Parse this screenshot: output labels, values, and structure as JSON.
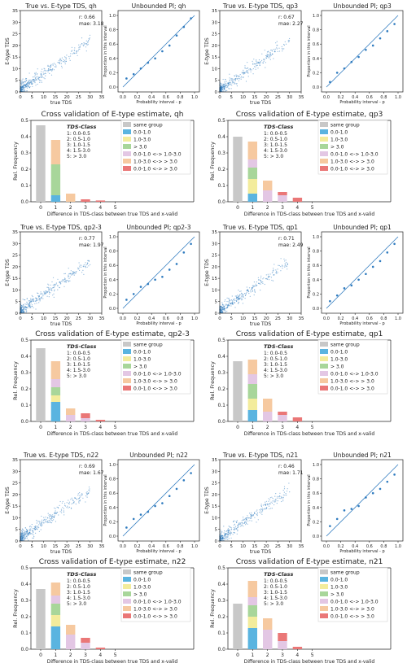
{
  "scatter_common": {
    "title_prefix": "True vs. E-type TDS, ",
    "xlabel": "true TDS",
    "ylabel": "E-type TDS",
    "ticks": [
      0,
      5,
      10,
      15,
      20,
      25,
      30,
      35
    ],
    "r_prefix": "r: ",
    "mae_prefix": "mae: "
  },
  "pi_common": {
    "title_prefix": "Unbounded PI; ",
    "xlabel": "Probability interval - p",
    "ylabel": "Proportion in this interval",
    "ticks": [
      "0.0",
      "0.2",
      "0.4",
      "0.6",
      "0.8",
      "1.0"
    ]
  },
  "bar_common": {
    "title_prefix": "Cross validation of E-type estimate, ",
    "xlabel": "Difference in TDS-class between true TDS and x-valid",
    "ylabel": "Rel. Frequency",
    "yticks": [
      "0.0",
      "0.1",
      "0.2",
      "0.3",
      "0.4",
      "0.5"
    ],
    "xticks": [
      "0",
      "1",
      "2",
      "3",
      "4",
      "5"
    ],
    "class_title": "TDS-Class",
    "classes": [
      "1: 0.0-0.5",
      "2: 0.5-1.0",
      "3: 1.0-1.5",
      "4: 1.5-3.0",
      "5: > 3.0"
    ],
    "legend": [
      {
        "label": "same group",
        "color": "#c8c8c8"
      },
      {
        "label": "0.0-1.0",
        "color": "#5ab4e0"
      },
      {
        "label": "1.0-3.0",
        "color": "#f3ec9c"
      },
      {
        "label": "> 3.0",
        "color": "#a8d69a"
      },
      {
        "label": "0.0-1.0 <-> 1.0-3.0",
        "color": "#e3c7e4"
      },
      {
        "label": "1.0-3.0 <-> > 3.0",
        "color": "#f6c9a0"
      },
      {
        "label": "0.0-1.0 <-> > 3.0",
        "color": "#ea7777"
      }
    ]
  },
  "chart_data": [
    {
      "type": "scatter",
      "title": "True vs. E-type TDS, qh",
      "group": "qh",
      "r": "0.66",
      "mae": "3.18",
      "xlim": [
        0,
        35
      ],
      "ylim": [
        0,
        35
      ]
    },
    {
      "type": "line",
      "title": "Unbounded PI; qh",
      "group": "qh",
      "x": [
        0.05,
        0.15,
        0.25,
        0.35,
        0.45,
        0.55,
        0.65,
        0.75,
        0.85,
        0.95
      ],
      "y": [
        0.12,
        0.18,
        0.26,
        0.34,
        0.4,
        0.5,
        0.58,
        0.72,
        0.84,
        0.96
      ],
      "line": [
        [
          0,
          0
        ],
        [
          1,
          1
        ]
      ]
    },
    {
      "type": "scatter",
      "title": "True vs. E-type TDS, qp3",
      "group": "qp3",
      "r": "0.67",
      "mae": "2.27",
      "xlim": [
        0,
        35
      ],
      "ylim": [
        0,
        35
      ]
    },
    {
      "type": "line",
      "title": "Unbounded PI; qp3",
      "group": "qp3",
      "x": [
        0.05,
        0.15,
        0.25,
        0.35,
        0.45,
        0.55,
        0.65,
        0.75,
        0.85,
        0.95
      ],
      "y": [
        0.07,
        0.2,
        0.26,
        0.35,
        0.42,
        0.52,
        0.58,
        0.68,
        0.78,
        0.88
      ],
      "line": [
        [
          0,
          0
        ],
        [
          1,
          1
        ]
      ]
    },
    {
      "type": "bar",
      "title": "Cross validation of E-type estimate, qh",
      "group": "qh",
      "ylim": [
        0,
        0.5
      ],
      "categories": [
        "0",
        "1",
        "2",
        "3",
        "4",
        "5"
      ],
      "stacks": [
        [
          [
            "same group",
            0.47
          ]
        ],
        [
          [
            "0.0-1.0",
            0.04
          ],
          [
            "> 3.0",
            0.19
          ],
          [
            "1.0-3.0 <-> > 3.0",
            0.15
          ]
        ],
        [
          [
            "1.0-3.0 <-> > 3.0",
            0.05
          ]
        ],
        [
          [
            "0.0-1.0 <-> > 3.0",
            0.015
          ]
        ],
        [
          [
            "0.0-1.0 <-> > 3.0",
            0.008
          ]
        ],
        []
      ]
    },
    {
      "type": "bar",
      "title": "Cross validation of E-type estimate, qp3",
      "group": "qp3",
      "ylim": [
        0,
        0.5
      ],
      "categories": [
        "0",
        "1",
        "2",
        "3",
        "4",
        "5"
      ],
      "stacks": [
        [
          [
            "same group",
            0.4
          ]
        ],
        [
          [
            "0.0-1.0",
            0.05
          ],
          [
            "1.0-3.0",
            0.09
          ],
          [
            "> 3.0",
            0.07
          ],
          [
            "0.0-1.0 <-> 1.0-3.0",
            0.05
          ],
          [
            "1.0-3.0 <-> > 3.0",
            0.11
          ]
        ],
        [
          [
            "0.0-1.0 <-> 1.0-3.0",
            0.07
          ],
          [
            "1.0-3.0 <-> > 3.0",
            0.06
          ]
        ],
        [
          [
            "0.0-1.0 <-> 1.0-3.0",
            0.04
          ],
          [
            "0.0-1.0 <-> > 3.0",
            0.02
          ]
        ],
        [
          [
            "0.0-1.0 <-> > 3.0",
            0.025
          ]
        ],
        []
      ]
    },
    {
      "type": "scatter",
      "title": "True vs. E-type TDS, qp2-3",
      "group": "qp2-3",
      "r": "0.77",
      "mae": "1.97",
      "xlim": [
        0,
        35
      ],
      "ylim": [
        0,
        35
      ]
    },
    {
      "type": "line",
      "title": "Unbounded PI; qp2-3",
      "group": "qp2-3",
      "x": [
        0.05,
        0.15,
        0.25,
        0.35,
        0.45,
        0.55,
        0.65,
        0.75,
        0.85,
        0.95
      ],
      "y": [
        0.12,
        0.2,
        0.3,
        0.34,
        0.4,
        0.44,
        0.54,
        0.62,
        0.78,
        0.9
      ],
      "line": [
        [
          0,
          0
        ],
        [
          1,
          1
        ]
      ]
    },
    {
      "type": "scatter",
      "title": "True vs. E-type TDS, qp1",
      "group": "qp1",
      "r": "0.71",
      "mae": "2.49",
      "xlim": [
        0,
        35
      ],
      "ylim": [
        0,
        35
      ]
    },
    {
      "type": "line",
      "title": "Unbounded PI; qp1",
      "group": "qp1",
      "x": [
        0.05,
        0.15,
        0.25,
        0.35,
        0.45,
        0.55,
        0.65,
        0.75,
        0.85,
        0.95
      ],
      "y": [
        0.1,
        0.18,
        0.28,
        0.32,
        0.4,
        0.48,
        0.58,
        0.66,
        0.78,
        0.9
      ],
      "line": [
        [
          0,
          0
        ],
        [
          1,
          1
        ]
      ]
    },
    {
      "type": "bar",
      "title": "Cross validation of E-type estimate, qp2-3",
      "group": "qp2-3",
      "ylim": [
        0,
        0.5
      ],
      "categories": [
        "0",
        "1",
        "2",
        "3",
        "4",
        "5"
      ],
      "stacks": [
        [
          [
            "same group",
            0.45
          ]
        ],
        [
          [
            "0.0-1.0",
            0.12
          ],
          [
            "1.0-3.0",
            0.04
          ],
          [
            "> 3.0",
            0.05
          ],
          [
            "0.0-1.0 <-> 1.0-3.0",
            0.05
          ],
          [
            "1.0-3.0 <-> > 3.0",
            0.11
          ]
        ],
        [
          [
            "0.0-1.0 <-> 1.0-3.0",
            0.04
          ],
          [
            "1.0-3.0 <-> > 3.0",
            0.04
          ]
        ],
        [
          [
            "0.0-1.0 <-> 1.0-3.0",
            0.02
          ],
          [
            "0.0-1.0 <-> > 3.0",
            0.03
          ]
        ],
        [
          [
            "0.0-1.0 <-> > 3.0",
            0.01
          ]
        ],
        []
      ]
    },
    {
      "type": "bar",
      "title": "Cross validation of E-type estimate, qp1",
      "group": "qp1",
      "ylim": [
        0,
        0.5
      ],
      "categories": [
        "0",
        "1",
        "2",
        "3",
        "4",
        "5"
      ],
      "stacks": [
        [
          [
            "same group",
            0.37
          ]
        ],
        [
          [
            "0.0-1.0",
            0.07
          ],
          [
            "1.0-3.0",
            0.07
          ],
          [
            "> 3.0",
            0.09
          ],
          [
            "0.0-1.0 <-> 1.0-3.0",
            0.06
          ],
          [
            "1.0-3.0 <-> > 3.0",
            0.09
          ]
        ],
        [
          [
            "0.0-1.0 <-> 1.0-3.0",
            0.06
          ],
          [
            "1.0-3.0 <-> > 3.0",
            0.08
          ]
        ],
        [
          [
            "0.0-1.0 <-> 1.0-3.0",
            0.04
          ],
          [
            "0.0-1.0 <-> > 3.0",
            0.02
          ]
        ],
        [
          [
            "0.0-1.0 <-> > 3.0",
            0.025
          ]
        ],
        []
      ]
    },
    {
      "type": "scatter",
      "title": "True vs. E-type TDS, n22",
      "group": "n22",
      "r": "0.69",
      "mae": "1.67",
      "xlim": [
        0,
        35
      ],
      "ylim": [
        0,
        35
      ]
    },
    {
      "type": "line",
      "title": "Unbounded PI; n22",
      "group": "n22",
      "x": [
        0.05,
        0.15,
        0.25,
        0.35,
        0.45,
        0.55,
        0.65,
        0.75,
        0.85,
        0.95
      ],
      "y": [
        0.12,
        0.24,
        0.3,
        0.34,
        0.42,
        0.46,
        0.56,
        0.66,
        0.78,
        0.88
      ],
      "line": [
        [
          0,
          0
        ],
        [
          1,
          1
        ]
      ]
    },
    {
      "type": "scatter",
      "title": "True vs. E-type TDS, n21",
      "group": "n21",
      "r": "0.46",
      "mae": "1.71",
      "xlim": [
        0,
        35
      ],
      "ylim": [
        0,
        35
      ]
    },
    {
      "type": "line",
      "title": "Unbounded PI; n21",
      "group": "n21",
      "x": [
        0.05,
        0.15,
        0.25,
        0.35,
        0.45,
        0.55,
        0.65,
        0.75,
        0.85,
        0.95
      ],
      "y": [
        0.14,
        0.24,
        0.36,
        0.38,
        0.42,
        0.54,
        0.6,
        0.66,
        0.76,
        0.86
      ],
      "line": [
        [
          0,
          0
        ],
        [
          1,
          1
        ]
      ]
    },
    {
      "type": "bar",
      "title": "Cross validation of E-type estimate, n22",
      "group": "n22",
      "ylim": [
        0,
        0.5
      ],
      "categories": [
        "0",
        "1",
        "2",
        "3",
        "4",
        "5"
      ],
      "stacks": [
        [
          [
            "same group",
            0.37
          ]
        ],
        [
          [
            "0.0-1.0",
            0.14
          ],
          [
            "1.0-3.0",
            0.07
          ],
          [
            "> 3.0",
            0.07
          ],
          [
            "0.0-1.0 <-> 1.0-3.0",
            0.05
          ],
          [
            "1.0-3.0 <-> > 3.0",
            0.08
          ]
        ],
        [
          [
            "0.0-1.0 <-> 1.0-3.0",
            0.09
          ],
          [
            "1.0-3.0 <-> > 3.0",
            0.06
          ]
        ],
        [
          [
            "0.0-1.0 <-> 1.0-3.0",
            0.04
          ],
          [
            "0.0-1.0 <-> > 3.0",
            0.03
          ]
        ],
        [
          [
            "0.0-1.0 <-> > 3.0",
            0.01
          ]
        ],
        []
      ]
    },
    {
      "type": "bar",
      "title": "Cross validation of E-type estimate, n21",
      "group": "n21",
      "ylim": [
        0,
        0.5
      ],
      "categories": [
        "0",
        "1",
        "2",
        "3",
        "4",
        "5"
      ],
      "stacks": [
        [
          [
            "same group",
            0.28
          ]
        ],
        [
          [
            "0.0-1.0",
            0.13
          ],
          [
            "1.0-3.0",
            0.07
          ],
          [
            "> 3.0",
            0.07
          ],
          [
            "0.0-1.0 <-> 1.0-3.0",
            0.05
          ],
          [
            "1.0-3.0 <-> > 3.0",
            0.1
          ]
        ],
        [
          [
            "0.0-1.0 <-> 1.0-3.0",
            0.12
          ],
          [
            "1.0-3.0 <-> > 3.0",
            0.07
          ]
        ],
        [
          [
            "0.0-1.0 <-> 1.0-3.0",
            0.05
          ],
          [
            "0.0-1.0 <-> > 3.0",
            0.05
          ]
        ],
        [
          [
            "0.0-1.0 <-> > 3.0",
            0.015
          ]
        ],
        []
      ]
    }
  ]
}
